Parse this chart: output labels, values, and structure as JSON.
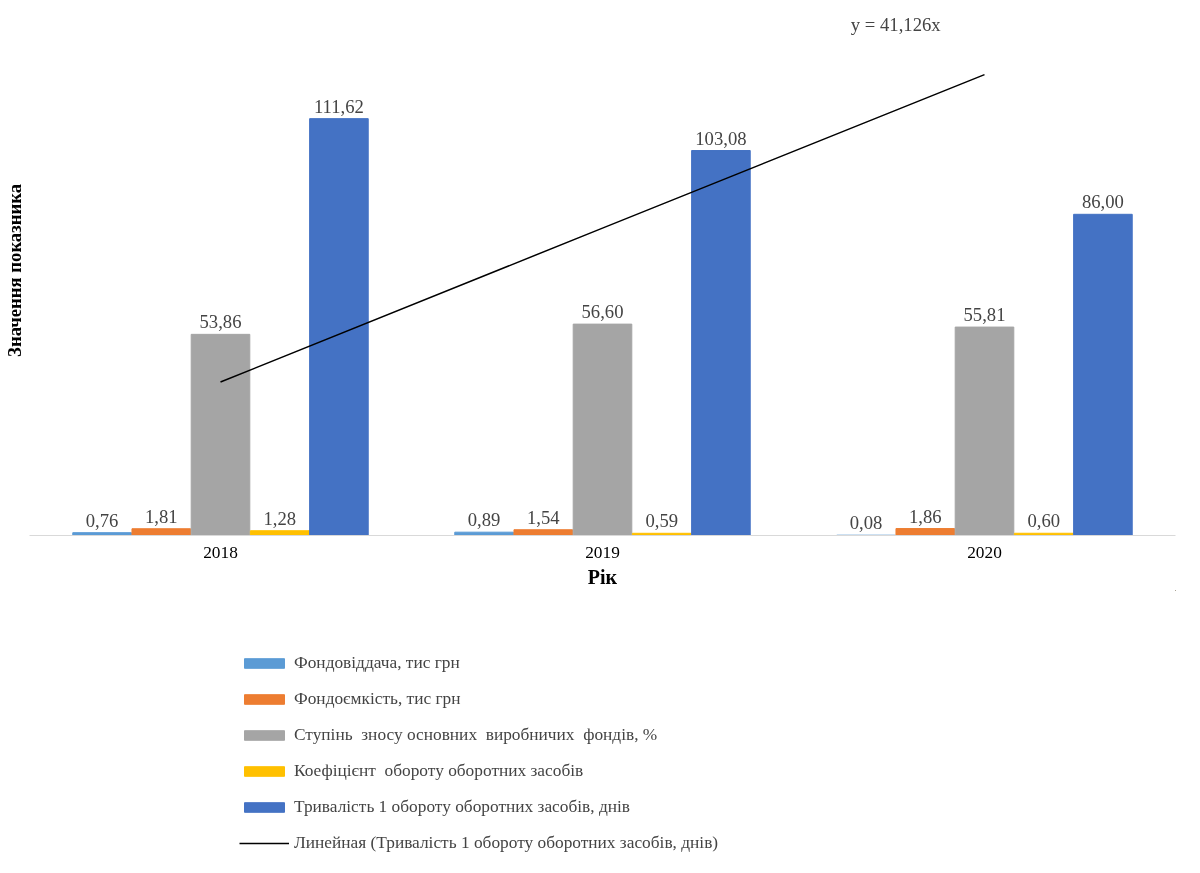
{
  "chart_data": {
    "type": "bar",
    "xlabel": "Рік",
    "ylabel": "Значення показника",
    "categories": [
      "2018",
      "2019",
      "2020"
    ],
    "tick_labels": "x",
    "legend": "bottom",
    "annotations": [
      "y = 41,126x"
    ],
    "series": [
      {
        "name": "Фондовіддача, тис грн",
        "color": "#5b9bd5",
        "values": [
          0.76,
          0.89,
          0.08
        ],
        "value_labels": [
          "0,76",
          "0,89",
          "0,08"
        ]
      },
      {
        "name": "Фондоємкість, тис грн",
        "color": "#ed7d31",
        "values": [
          1.81,
          1.54,
          1.86
        ],
        "value_labels": [
          "1,81",
          "1,54",
          "1,86"
        ]
      },
      {
        "name": "Ступінь  зносу основних  виробничих  фондів, %",
        "color": "#a5a5a5",
        "values": [
          53.86,
          56.6,
          55.81
        ],
        "value_labels": [
          "53,86",
          "56,60",
          "55,81"
        ]
      },
      {
        "name": "Коефіцієнт  обороту оборотних засобів",
        "color": "#ffc000",
        "values": [
          1.28,
          0.59,
          0.6
        ],
        "value_labels": [
          "1,28",
          "0,59",
          "0,60"
        ]
      },
      {
        "name": "Тривалість 1 обороту оборотних засобів, днів",
        "color": "#4472c4",
        "values": [
          111.62,
          103.08,
          86.0
        ],
        "value_labels": [
          "111,62",
          "103,08",
          "86,00"
        ]
      },
      {
        "name": "Линейная (Тривалість 1 обороту оборотних засобів, днів)",
        "type": "line",
        "color": "#000000",
        "values": [
          41.1,
          82.3,
          123.4
        ]
      }
    ]
  }
}
